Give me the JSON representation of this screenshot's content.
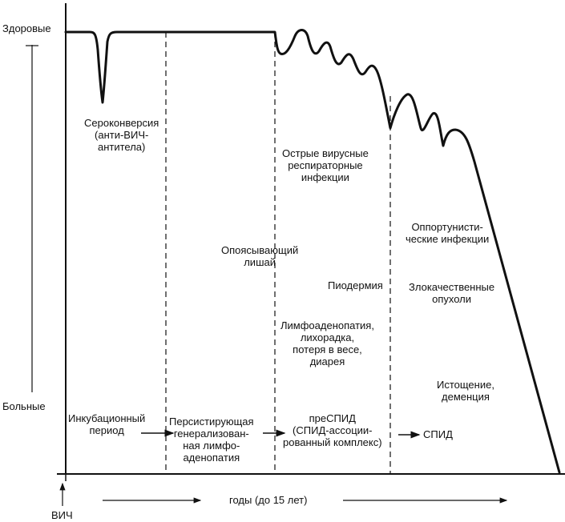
{
  "axis": {
    "top_label": "Здоровые",
    "bottom_label": "Больные",
    "origin_label": "ВИЧ",
    "time_label": "годы (до 15 лет)"
  },
  "annotations": {
    "seroconversion": [
      "Сероконверсия",
      "(анти-ВИЧ-",
      "антитела)"
    ],
    "respiratory": [
      "Острые вирусные",
      "респираторные",
      "инфекции"
    ],
    "zoster": [
      "Опоясывающий",
      "лишай"
    ],
    "opportunistic": [
      "Оппортунисти-",
      "ческие инфекции"
    ],
    "pyoderma": "Пиодермия",
    "tumors": [
      "Злокачественные",
      "опухоли"
    ],
    "lymph": [
      "Лимфоаденопатия,",
      "лихорадка,",
      "потеря в весе,",
      "диарея"
    ],
    "wasting": [
      "Истощение,",
      "деменция"
    ]
  },
  "stages": {
    "incubation": [
      "Инкубационный",
      "период"
    ],
    "persistent": [
      "Персистирующая",
      "генерализован-",
      "ная лимфо-",
      "аденопатия"
    ],
    "pre_aids": [
      "преСПИД",
      "(СПИД-ассоции-",
      "рованный комплекс)"
    ],
    "aids": "СПИД"
  },
  "colors": {
    "ink": "#111111",
    "background": "#ffffff"
  }
}
